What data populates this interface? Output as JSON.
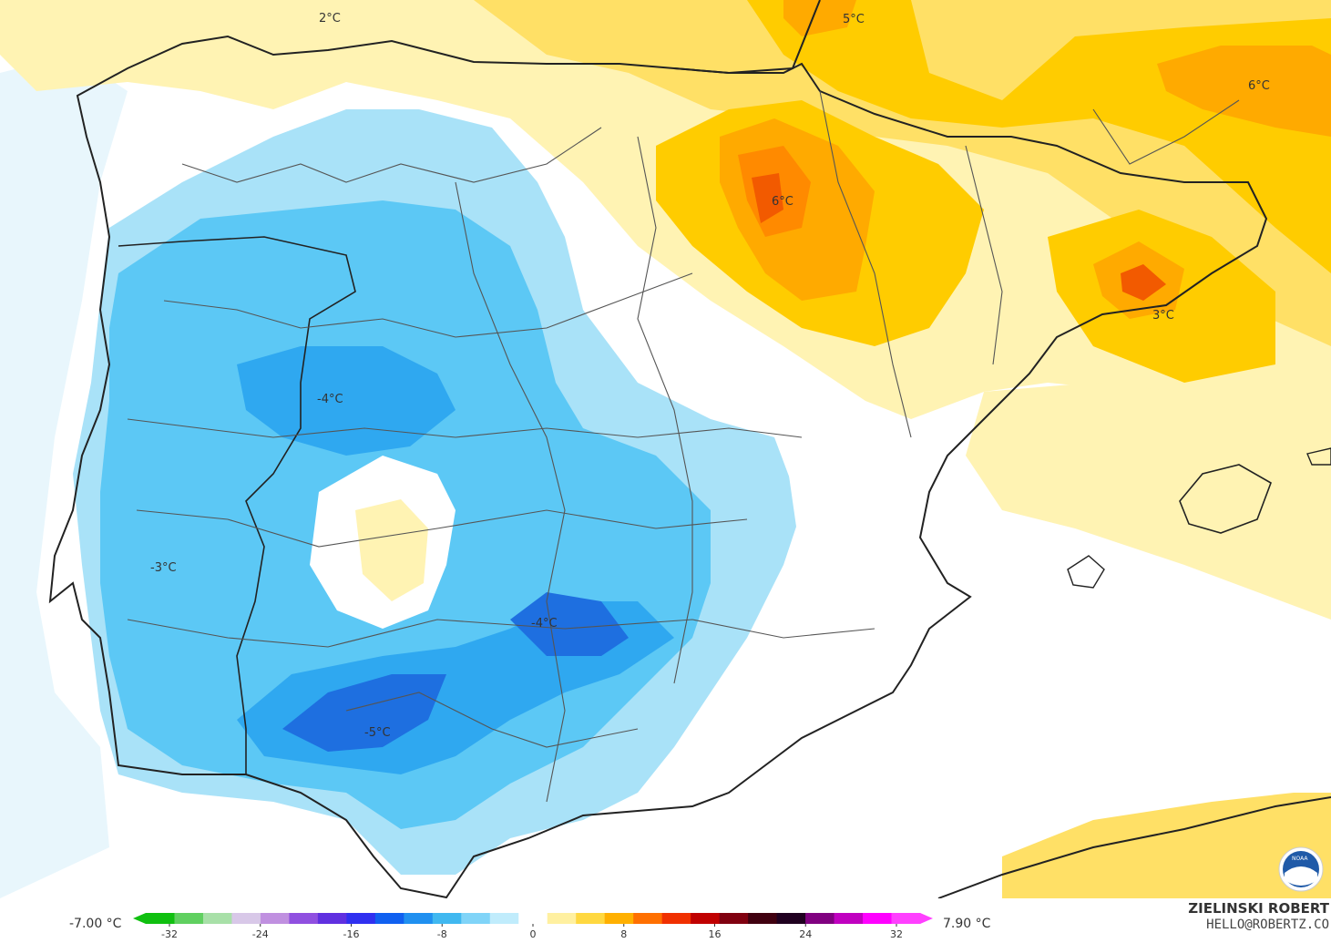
{
  "map": {
    "contour_labels": [
      {
        "id": "label-2c-northwest",
        "text": "2°C"
      },
      {
        "id": "label-5c-north",
        "text": "5°C"
      },
      {
        "id": "label-6c-northeast",
        "text": "6°C"
      },
      {
        "id": "label-6c-ebro",
        "text": "6°C"
      },
      {
        "id": "label-3c-catalonia",
        "text": "3°C"
      },
      {
        "id": "label-minus4-west",
        "text": "-4°C"
      },
      {
        "id": "label-minus3-portugal",
        "text": "-3°C"
      },
      {
        "id": "label-minus4-southeast",
        "text": "-4°C"
      },
      {
        "id": "label-minus5-south",
        "text": "-5°C"
      }
    ],
    "colors": {
      "cold_deep": "#1e6fe0",
      "cold_mid": "#2fa8f0",
      "cold": "#5cc8f5",
      "cool": "#a9e2f8",
      "cool_light": "#dff3fb",
      "neutral": "#ffffff",
      "warm_light": "#fff3b3",
      "warm": "#ffe066",
      "warm_mid": "#ffcc00",
      "hot": "#ffaa00",
      "hotter": "#ff8a00",
      "hottest": "#f25a00",
      "border": "#222222",
      "admin_border": "#555555"
    },
    "logo_icon": "noaa-logo-icon"
  },
  "legend": {
    "min_label": "-7.00 °C",
    "max_label": "7.90 °C",
    "ticks": [
      "-32",
      "-24",
      "-16",
      "-8",
      "0",
      "8",
      "16",
      "24",
      "32"
    ],
    "colors": [
      "#10c010",
      "#60d060",
      "#a8e0a8",
      "#d8c8e8",
      "#c090e0",
      "#9050e0",
      "#6030e0",
      "#3030f0",
      "#1060f0",
      "#2090f0",
      "#40b8f0",
      "#80d4f8",
      "#c0ecfc",
      "#ffffff",
      "#fff0a0",
      "#ffd840",
      "#ffb000",
      "#ff7000",
      "#f03000",
      "#c00000",
      "#800010",
      "#400010",
      "#200020",
      "#800080",
      "#c000c0",
      "#ff00ff",
      "#ff40ff"
    ]
  },
  "footer": {
    "author": "ZIELINSKI ROBERT",
    "email": "HELLO@ROBERTZ.CO"
  }
}
